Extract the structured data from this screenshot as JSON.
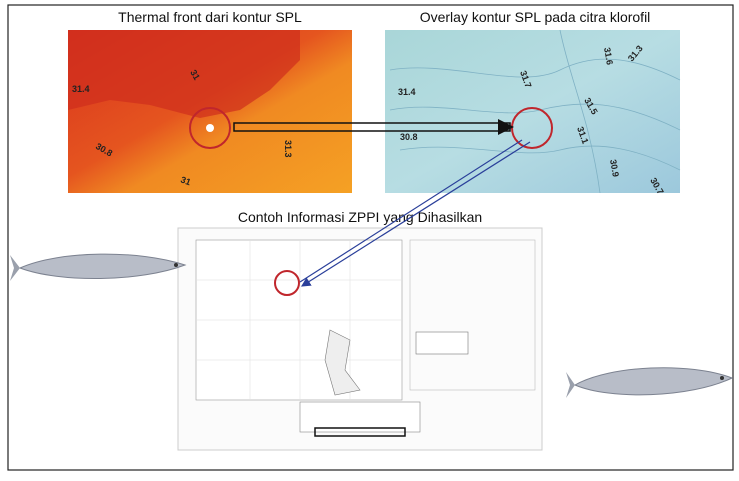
{
  "panels": [
    {
      "title": "Thermal front dari kontur SPL",
      "contour_labels": [
        "31.4",
        "30.8",
        "31",
        "31.3",
        "31"
      ]
    },
    {
      "title": "Overlay kontur SPL pada citra klorofil",
      "contour_labels": [
        "31.4",
        "31.7",
        "31.6",
        "31.3",
        "31.5",
        "31.1",
        "30.9",
        "30.8",
        "30.7"
      ]
    }
  ],
  "result": {
    "title": "Contoh Informasi ZPPI yang Dihasilkan"
  }
}
